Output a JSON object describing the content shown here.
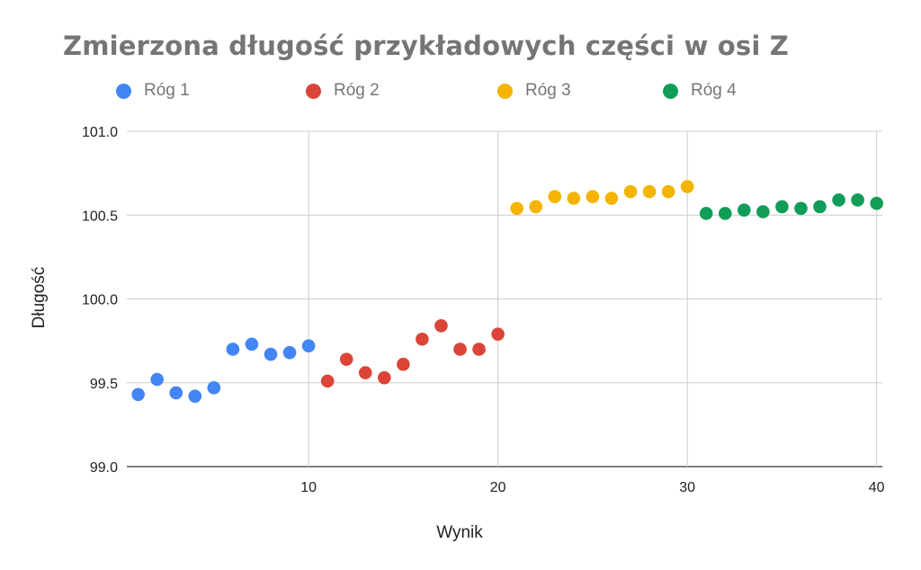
{
  "chart_data": {
    "type": "scatter",
    "title": "Zmierzona długość przykładowych części w osi Z",
    "xlabel": "Wynik",
    "ylabel": "Długość",
    "xlim": [
      0.4,
      40.3
    ],
    "ylim": [
      99.0,
      101.0
    ],
    "x_ticks": [
      10,
      20,
      30,
      40
    ],
    "y_ticks": [
      99.0,
      99.5,
      100.0,
      100.5,
      101.0
    ],
    "y_tick_labels": [
      "99.0",
      "99.5",
      "100.0",
      "100.5",
      "101.0"
    ],
    "grid": true,
    "legend_position": "top",
    "series": [
      {
        "name": "Róg 1",
        "color": "#4285F4",
        "x": [
          1,
          2,
          3,
          4,
          5,
          6,
          7,
          8,
          9,
          10
        ],
        "y": [
          99.43,
          99.52,
          99.44,
          99.42,
          99.47,
          99.7,
          99.73,
          99.67,
          99.68,
          99.72
        ]
      },
      {
        "name": "Róg 2",
        "color": "#DB4437",
        "x": [
          11,
          12,
          13,
          14,
          15,
          16,
          17,
          18,
          19,
          20
        ],
        "y": [
          99.51,
          99.64,
          99.56,
          99.53,
          99.61,
          99.76,
          99.84,
          99.7,
          99.7,
          99.79
        ]
      },
      {
        "name": "Róg 3",
        "color": "#F4B400",
        "x": [
          21,
          22,
          23,
          24,
          25,
          26,
          27,
          28,
          29,
          30
        ],
        "y": [
          100.54,
          100.55,
          100.61,
          100.6,
          100.61,
          100.6,
          100.64,
          100.64,
          100.64,
          100.67
        ]
      },
      {
        "name": "Róg 4",
        "color": "#0F9D58",
        "x": [
          31,
          32,
          33,
          34,
          35,
          36,
          37,
          38,
          39,
          40
        ],
        "y": [
          100.51,
          100.51,
          100.53,
          100.52,
          100.55,
          100.54,
          100.55,
          100.59,
          100.59,
          100.57
        ]
      }
    ]
  }
}
